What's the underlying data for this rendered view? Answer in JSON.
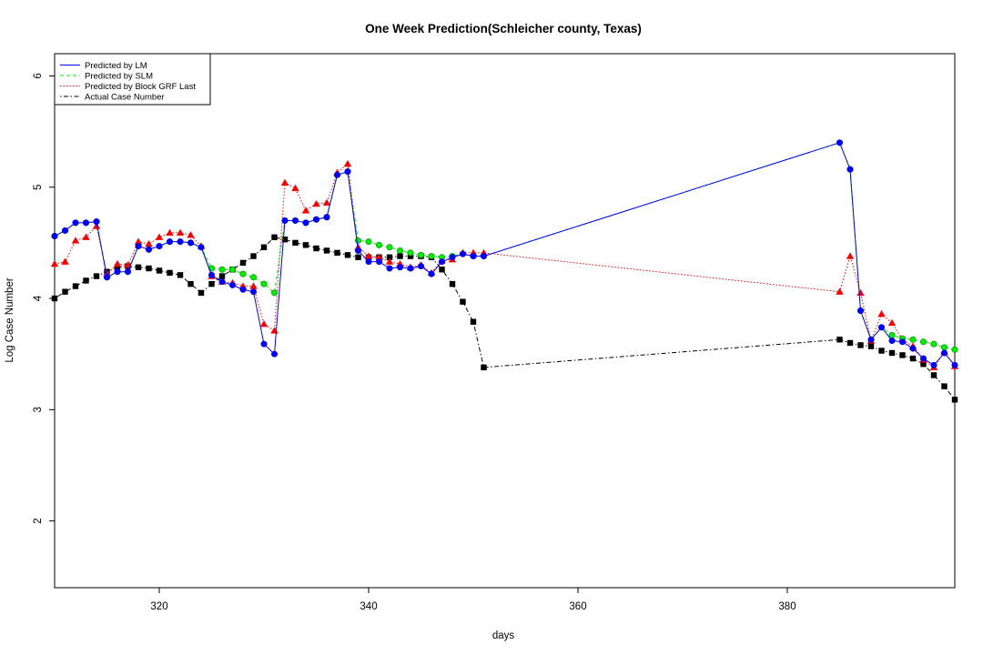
{
  "chart_data": {
    "type": "line",
    "title": "One Week Prediction(Schleicher county, Texas)",
    "xlabel": "days",
    "ylabel": "Log Case Number",
    "xlim": [
      310,
      396
    ],
    "ylim": [
      1.4,
      6.2
    ],
    "xticks": [
      320,
      340,
      360,
      380
    ],
    "yticks": [
      2,
      3,
      4,
      5,
      6
    ],
    "grid": false,
    "legend_position": "top-left",
    "x": [
      310,
      311,
      312,
      313,
      314,
      315,
      316,
      317,
      318,
      319,
      320,
      321,
      322,
      323,
      324,
      325,
      326,
      327,
      328,
      329,
      330,
      331,
      332,
      333,
      334,
      335,
      336,
      337,
      338,
      339,
      340,
      341,
      342,
      343,
      344,
      345,
      346,
      347,
      348,
      349,
      350,
      351,
      385,
      386,
      387,
      388,
      389,
      390,
      391,
      392,
      393,
      394,
      395,
      396
    ],
    "series": [
      {
        "name": "Predicted by LM",
        "color": "#0000ff",
        "line_style": "solid",
        "marker": "circle",
        "values": [
          4.56,
          4.61,
          4.68,
          4.68,
          4.69,
          4.19,
          4.24,
          4.24,
          4.47,
          4.44,
          4.47,
          4.51,
          4.51,
          4.5,
          4.46,
          4.21,
          4.15,
          4.12,
          4.08,
          4.06,
          3.59,
          3.5,
          4.7,
          4.7,
          4.68,
          4.71,
          4.73,
          5.11,
          5.14,
          4.43,
          4.33,
          4.33,
          4.27,
          4.28,
          4.27,
          4.29,
          4.22,
          4.33,
          4.37,
          4.4,
          4.38,
          4.38,
          5.4,
          5.16,
          3.89,
          3.63,
          3.74,
          3.62,
          3.61,
          3.55,
          3.46,
          3.4,
          3.51,
          3.4
        ]
      },
      {
        "name": "Predicted by SLM",
        "color": "#00ee00",
        "line_style": "dashed",
        "marker": "circle",
        "values": [
          4.56,
          4.61,
          4.68,
          4.68,
          4.69,
          4.19,
          4.24,
          4.24,
          4.47,
          4.44,
          4.47,
          4.51,
          4.51,
          4.5,
          4.46,
          4.27,
          4.26,
          4.26,
          4.22,
          4.19,
          4.13,
          4.05,
          4.7,
          4.7,
          4.68,
          4.71,
          4.73,
          5.11,
          5.14,
          4.52,
          4.51,
          4.48,
          4.46,
          4.43,
          4.41,
          4.39,
          4.38,
          4.37,
          4.38,
          4.4,
          4.38,
          4.38,
          5.4,
          5.16,
          3.89,
          3.63,
          3.74,
          3.67,
          3.64,
          3.63,
          3.61,
          3.59,
          3.56,
          3.54
        ]
      },
      {
        "name": "Predicted by Block GRF Last",
        "color": "#ff0000",
        "line_style": "dotted",
        "marker": "triangle",
        "values": [
          4.31,
          4.33,
          4.52,
          4.55,
          4.65,
          4.22,
          4.31,
          4.3,
          4.51,
          4.49,
          4.55,
          4.59,
          4.59,
          4.57,
          4.47,
          4.2,
          4.15,
          4.14,
          4.11,
          4.11,
          3.77,
          3.71,
          5.04,
          4.99,
          4.79,
          4.85,
          4.86,
          5.13,
          5.21,
          4.46,
          4.38,
          4.37,
          4.33,
          4.31,
          4.28,
          4.3,
          4.23,
          4.34,
          4.35,
          4.41,
          4.41,
          4.41,
          4.06,
          4.38,
          4.05,
          3.62,
          3.86,
          3.78,
          3.63,
          3.57,
          3.45,
          3.38,
          3.52,
          3.39
        ]
      },
      {
        "name": "Actual Case Number",
        "color": "#000000",
        "line_style": "dotdash",
        "marker": "square",
        "values": [
          4.0,
          4.06,
          4.11,
          4.16,
          4.2,
          4.24,
          4.28,
          4.29,
          4.28,
          4.27,
          4.25,
          4.23,
          4.21,
          4.13,
          4.05,
          4.13,
          4.2,
          4.26,
          4.32,
          4.38,
          4.46,
          4.55,
          4.53,
          4.5,
          4.48,
          4.45,
          4.43,
          4.41,
          4.39,
          4.37,
          4.37,
          4.37,
          4.37,
          4.38,
          4.38,
          4.38,
          4.37,
          4.26,
          4.13,
          3.97,
          3.79,
          3.38,
          3.63,
          3.6,
          3.58,
          3.57,
          3.53,
          3.51,
          3.49,
          3.46,
          3.41,
          3.31,
          3.21,
          3.09
        ]
      }
    ]
  }
}
